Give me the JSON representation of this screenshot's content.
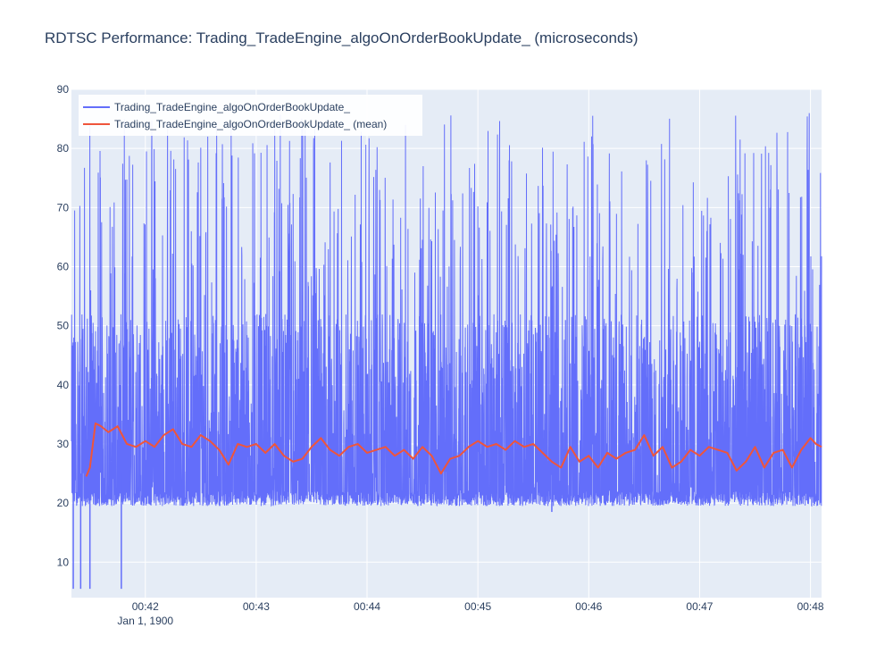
{
  "chart_data": {
    "type": "line",
    "title": "RDTSC Performance: Trading_TradeEngine_algoOnOrderBookUpdate_ (microseconds)",
    "xlabel": "",
    "ylabel": "",
    "x_range": [
      "00:41:20",
      "00:48:06"
    ],
    "ylim": [
      4,
      90
    ],
    "y_ticks": [
      10,
      20,
      30,
      40,
      50,
      60,
      70,
      80,
      90
    ],
    "x_ticks": [
      {
        "t": "00:42:00",
        "label": "00:42",
        "sublabel": "Jan 1, 1900"
      },
      {
        "t": "00:43:00",
        "label": "00:43"
      },
      {
        "t": "00:44:00",
        "label": "00:44"
      },
      {
        "t": "00:45:00",
        "label": "00:45"
      },
      {
        "t": "00:46:00",
        "label": "00:46"
      },
      {
        "t": "00:47:00",
        "label": "00:47"
      },
      {
        "t": "00:48:00",
        "label": "00:48"
      }
    ],
    "grid": true,
    "legend_position": "top-left",
    "plot_background": "#E5ECF6",
    "series": [
      {
        "name": "Trading_TradeEngine_algoOnOrderBookUpdate_",
        "color": "#636EFA",
        "style": "dense high-frequency samples",
        "typical_min": 19.5,
        "typical_max": 52,
        "spike_max": 86,
        "low_outliers": [
          {
            "t": "00:41:21",
            "y": 5.5
          },
          {
            "t": "00:41:25",
            "y": 5.5
          },
          {
            "t": "00:41:30",
            "y": 5.5
          },
          {
            "t": "00:41:47",
            "y": 5.5
          },
          {
            "t": "00:45:40",
            "y": 18.5
          }
        ]
      },
      {
        "name": "Trading_TradeEngine_algoOnOrderBookUpdate_ (mean)",
        "color": "#EF553B",
        "points": [
          [
            "00:41:28",
            24.5
          ],
          [
            "00:41:30",
            26.0
          ],
          [
            "00:41:33",
            33.5
          ],
          [
            "00:41:36",
            33.0
          ],
          [
            "00:41:40",
            32.0
          ],
          [
            "00:41:45",
            33.0
          ],
          [
            "00:41:50",
            30.0
          ],
          [
            "00:41:55",
            29.5
          ],
          [
            "00:42:00",
            30.5
          ],
          [
            "00:42:05",
            29.5
          ],
          [
            "00:42:10",
            31.5
          ],
          [
            "00:42:15",
            32.5
          ],
          [
            "00:42:20",
            30.0
          ],
          [
            "00:42:25",
            29.5
          ],
          [
            "00:42:30",
            31.5
          ],
          [
            "00:42:35",
            30.5
          ],
          [
            "00:42:40",
            29.0
          ],
          [
            "00:42:45",
            26.5
          ],
          [
            "00:42:50",
            30.0
          ],
          [
            "00:42:55",
            29.5
          ],
          [
            "00:43:00",
            30.0
          ],
          [
            "00:43:05",
            28.5
          ],
          [
            "00:43:10",
            30.0
          ],
          [
            "00:43:15",
            28.0
          ],
          [
            "00:43:20",
            27.0
          ],
          [
            "00:43:25",
            27.5
          ],
          [
            "00:43:30",
            29.5
          ],
          [
            "00:43:35",
            31.0
          ],
          [
            "00:43:40",
            29.0
          ],
          [
            "00:43:45",
            28.0
          ],
          [
            "00:43:50",
            29.5
          ],
          [
            "00:43:55",
            30.0
          ],
          [
            "00:44:00",
            28.5
          ],
          [
            "00:44:05",
            29.0
          ],
          [
            "00:44:10",
            29.5
          ],
          [
            "00:44:15",
            28.0
          ],
          [
            "00:44:20",
            29.0
          ],
          [
            "00:44:25",
            27.5
          ],
          [
            "00:44:30",
            29.5
          ],
          [
            "00:44:35",
            28.0
          ],
          [
            "00:44:40",
            25.0
          ],
          [
            "00:44:45",
            27.5
          ],
          [
            "00:44:50",
            28.0
          ],
          [
            "00:44:55",
            29.5
          ],
          [
            "00:45:00",
            30.5
          ],
          [
            "00:45:05",
            29.5
          ],
          [
            "00:45:10",
            30.0
          ],
          [
            "00:45:15",
            29.0
          ],
          [
            "00:45:20",
            30.5
          ],
          [
            "00:45:25",
            29.5
          ],
          [
            "00:45:30",
            30.0
          ],
          [
            "00:45:35",
            28.5
          ],
          [
            "00:45:40",
            27.0
          ],
          [
            "00:45:45",
            26.0
          ],
          [
            "00:45:50",
            29.5
          ],
          [
            "00:45:55",
            27.0
          ],
          [
            "00:46:00",
            28.0
          ],
          [
            "00:46:05",
            26.0
          ],
          [
            "00:46:10",
            28.5
          ],
          [
            "00:46:15",
            27.5
          ],
          [
            "00:46:20",
            28.5
          ],
          [
            "00:46:25",
            29.0
          ],
          [
            "00:46:30",
            31.5
          ],
          [
            "00:46:35",
            28.0
          ],
          [
            "00:46:40",
            29.5
          ],
          [
            "00:46:45",
            26.0
          ],
          [
            "00:46:50",
            27.0
          ],
          [
            "00:46:55",
            29.0
          ],
          [
            "00:47:00",
            28.0
          ],
          [
            "00:47:05",
            29.5
          ],
          [
            "00:47:10",
            29.0
          ],
          [
            "00:47:15",
            28.5
          ],
          [
            "00:47:20",
            25.5
          ],
          [
            "00:47:25",
            27.0
          ],
          [
            "00:47:30",
            29.5
          ],
          [
            "00:47:35",
            26.0
          ],
          [
            "00:47:40",
            28.5
          ],
          [
            "00:47:45",
            29.0
          ],
          [
            "00:47:50",
            26.0
          ],
          [
            "00:47:55",
            29.0
          ],
          [
            "00:48:00",
            31.0
          ],
          [
            "00:48:03",
            30.0
          ],
          [
            "00:48:06",
            29.5
          ]
        ]
      }
    ]
  }
}
